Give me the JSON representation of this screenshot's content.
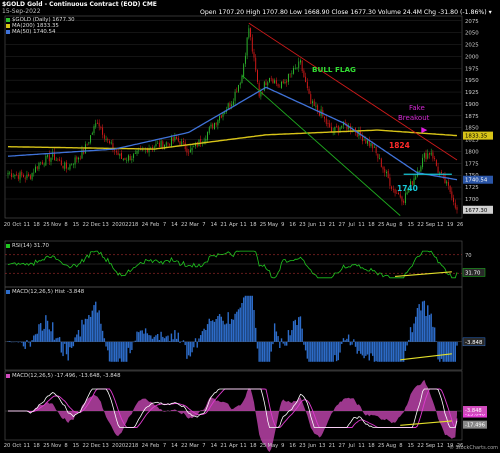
{
  "header": {
    "symbol_line": "$GOLD Gold - Continuous Contract (EOD) CME",
    "date": "15-Sep-2022",
    "ohlc": "Open 1707.20  High 1707.80  Low 1668.90  Close 1677.30  Volume 24.4M  Chg -31.80 (-1.86%) ▾",
    "copyright": "© StockCharts.com"
  },
  "legend": {
    "price": "$GOLD (Daily) 1677.30",
    "ma200": "MA(200) 1833.35",
    "ma50": "MA(50) 1740.54",
    "rsi": "RSI(14) 31.70",
    "macd_hist": "MACD(12,26,5) Hist -3.848",
    "macd": "MACD(12,26,5) -17.496, -13.648, -3.848"
  },
  "colors": {
    "background": "#000000",
    "up_candle": "#2fbf2f",
    "down_candle": "#e01b1b",
    "ma200": "#d8c418",
    "ma50": "#3f72d8",
    "channel_upper": "#cc1a1a",
    "channel_lower": "#1faa1f",
    "support": "#17c6d6",
    "pennant_marker": "#e01be0",
    "rsi_line": "#1fc41f",
    "hist_bar": "#2d6cc9",
    "macd_line": "#ffffff",
    "macd_signal": "#e03ad0",
    "macd_hist_fill": "#d14bbd",
    "divergence": "#e2df2b",
    "grid": "#2a2a2a",
    "axis_text": "#cfcfcf"
  },
  "chart_data": [
    {
      "type": "candlestick",
      "title": "$GOLD Gold - Continuous Contract (EOD) CME",
      "ylim": [
        1660,
        2085
      ],
      "y_ticks": [
        1700,
        1725,
        1750,
        1775,
        1800,
        1825,
        1850,
        1875,
        1900,
        1925,
        1950,
        1975,
        2000,
        2025,
        2050,
        2075
      ],
      "x_tick_labels": [
        "20",
        "Oct",
        "11",
        "18",
        "25",
        "Nov",
        "8",
        "15",
        "22",
        "Dec",
        "13",
        "20",
        "2022",
        "18",
        "24",
        "Feb",
        "7",
        "14",
        "22",
        "Mar",
        "7",
        "14",
        "21",
        "Apr",
        "11",
        "18",
        "25",
        "May",
        "9",
        "16",
        "23",
        "Jun",
        "13",
        "21",
        "27",
        "Jul",
        "11",
        "18",
        "25",
        "Aug",
        "8",
        "15",
        "22",
        "Sep",
        "12",
        "19",
        "26"
      ],
      "series": [
        {
          "name": "$GOLD (Daily)",
          "x": [
            "Sep 2021",
            "Oct 2021",
            "Nov 2021",
            "Dec 2021",
            "Jan 2022",
            "Feb 2022",
            "Mar 7 2022",
            "Apr 2022",
            "May 2022",
            "Jun 2022",
            "Jul 2022",
            "Aug 2022",
            "Sep 15 2022"
          ],
          "close": [
            1750,
            1760,
            1865,
            1790,
            1815,
            1900,
            2060,
            1940,
            1845,
            1820,
            1700,
            1790,
            1677.3
          ]
        },
        {
          "name": "MA(200)",
          "x": [
            "Sep 2021",
            "Jan 2022",
            "Apr 2022",
            "Jul 2022",
            "Sep 15 2022"
          ],
          "values": [
            1810,
            1805,
            1835,
            1845,
            1833.35
          ]
        },
        {
          "name": "MA(50)",
          "x": [
            "Sep 2021",
            "Dec 2021",
            "Feb 2022",
            "Apr 2022",
            "Jun 2022",
            "Aug 2022",
            "Sep 15 2022"
          ],
          "values": [
            1790,
            1805,
            1840,
            1935,
            1860,
            1755,
            1740.54
          ]
        }
      ],
      "annotations": [
        "BULL FLAG",
        "Fake Breakout",
        "1824",
        "1740"
      ],
      "price_labels": [
        "1833.35",
        "1740.54",
        "1677.30"
      ]
    },
    {
      "type": "line",
      "title": "RSI(14) 31.70",
      "ylim": [
        0,
        100
      ],
      "y_ticks": [
        30,
        70
      ],
      "series": [
        {
          "name": "RSI(14)",
          "last": 31.7
        }
      ],
      "price_labels": [
        "31.70"
      ]
    },
    {
      "type": "bar",
      "title": "MACD(12,26,5) Hist -3.848",
      "series": [
        {
          "name": "Hist",
          "last": -3.848
        }
      ],
      "price_labels": [
        "-3.848"
      ]
    },
    {
      "type": "line",
      "title": "MACD(12,26,5) -17.496, -13.648, -3.848",
      "series": [
        {
          "name": "MACD",
          "last": -17.496
        },
        {
          "name": "Signal",
          "last": -13.648
        },
        {
          "name": "Hist",
          "last": -3.848
        }
      ],
      "price_labels": [
        "-13.648",
        "-17.496",
        "-3.848"
      ]
    }
  ]
}
